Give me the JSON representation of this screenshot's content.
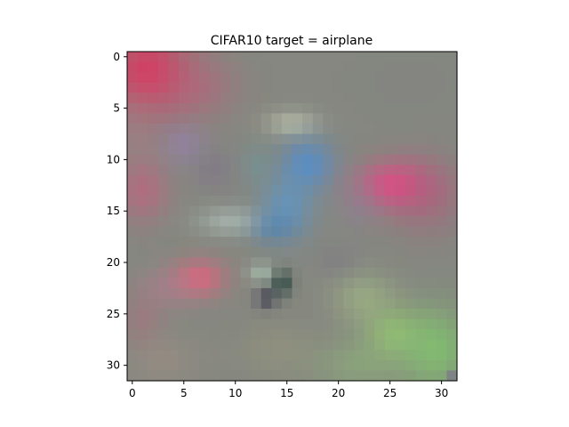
{
  "figure": {
    "title": "CIFAR10 target = airplane"
  },
  "image": {
    "grid_size": 32,
    "background_color": "#858780",
    "blobs": [
      {
        "color": "#e0305c",
        "cx": 1.5,
        "cy": 1.5,
        "rx": 4.0,
        "ry": 4.0,
        "a": 0.85
      },
      {
        "color": "#c65a7c",
        "cx": 6.0,
        "cy": 3.0,
        "rx": 4.0,
        "ry": 3.0,
        "a": 0.45
      },
      {
        "color": "#b07d8a",
        "cx": 0.5,
        "cy": 7.0,
        "rx": 2.5,
        "ry": 4.0,
        "a": 0.35
      },
      {
        "color": "#d05a80",
        "cx": 1.0,
        "cy": 13.0,
        "rx": 2.5,
        "ry": 3.0,
        "a": 0.55
      },
      {
        "color": "#9c7eb8",
        "cx": 5.0,
        "cy": 8.5,
        "rx": 2.0,
        "ry": 2.0,
        "a": 0.5
      },
      {
        "color": "#7e6f8d",
        "cx": 8.0,
        "cy": 11.0,
        "rx": 2.0,
        "ry": 2.0,
        "a": 0.45
      },
      {
        "color": "#cfd4b8",
        "cx": 15.5,
        "cy": 6.5,
        "rx": 2.5,
        "ry": 1.3,
        "a": 0.55
      },
      {
        "color": "#4e8fd6",
        "cx": 17.0,
        "cy": 10.5,
        "rx": 2.5,
        "ry": 2.5,
        "a": 0.75
      },
      {
        "color": "#5a9ad2",
        "cx": 15.0,
        "cy": 14.5,
        "rx": 2.5,
        "ry": 3.0,
        "a": 0.65
      },
      {
        "color": "#3f7bb8",
        "cx": 13.5,
        "cy": 16.5,
        "rx": 2.2,
        "ry": 1.5,
        "a": 0.55
      },
      {
        "color": "#b8ccc4",
        "cx": 9.5,
        "cy": 16.0,
        "rx": 3.0,
        "ry": 1.4,
        "a": 0.55
      },
      {
        "color": "#6a9aa0",
        "cx": 12.0,
        "cy": 10.5,
        "rx": 1.5,
        "ry": 2.0,
        "a": 0.4
      },
      {
        "color": "#e64a86",
        "cx": 25.5,
        "cy": 12.5,
        "rx": 3.5,
        "ry": 2.3,
        "a": 0.9
      },
      {
        "color": "#b5547a",
        "cx": 28.5,
        "cy": 13.5,
        "rx": 3.5,
        "ry": 3.5,
        "a": 0.5
      },
      {
        "color": "#8f7ea0",
        "cx": 22.0,
        "cy": 14.5,
        "rx": 2.0,
        "ry": 2.5,
        "a": 0.35
      },
      {
        "color": "#7f7f7f",
        "cx": 27.0,
        "cy": 2.5,
        "rx": 6.0,
        "ry": 4.0,
        "a": 0.25
      },
      {
        "color": "#e4627c",
        "cx": 6.5,
        "cy": 21.5,
        "rx": 2.5,
        "ry": 1.8,
        "a": 0.8
      },
      {
        "color": "#c07a96",
        "cx": 3.5,
        "cy": 22.5,
        "rx": 3.0,
        "ry": 2.0,
        "a": 0.4
      },
      {
        "color": "#b16c7c",
        "cx": 1.0,
        "cy": 25.5,
        "rx": 2.0,
        "ry": 2.5,
        "a": 0.45
      },
      {
        "color": "#1b3b34",
        "cx": 14.5,
        "cy": 22.0,
        "rx": 1.0,
        "ry": 1.3,
        "a": 0.75
      },
      {
        "color": "#b7d8c4",
        "cx": 12.5,
        "cy": 21.0,
        "rx": 1.3,
        "ry": 1.0,
        "a": 0.5
      },
      {
        "color": "#2c2a44",
        "cx": 13.0,
        "cy": 23.5,
        "rx": 1.0,
        "ry": 1.0,
        "a": 0.6
      },
      {
        "color": "#7c7686",
        "cx": 20.0,
        "cy": 20.0,
        "rx": 2.0,
        "ry": 1.5,
        "a": 0.45
      },
      {
        "color": "#a9c688",
        "cx": 22.5,
        "cy": 23.5,
        "rx": 3.0,
        "ry": 2.5,
        "a": 0.5
      },
      {
        "color": "#9cd66e",
        "cx": 25.5,
        "cy": 27.0,
        "rx": 3.0,
        "ry": 2.5,
        "a": 0.6
      },
      {
        "color": "#80c86c",
        "cx": 29.5,
        "cy": 28.5,
        "rx": 3.5,
        "ry": 4.0,
        "a": 0.75
      },
      {
        "color": "#8fba78",
        "cx": 22.0,
        "cy": 30.0,
        "rx": 4.5,
        "ry": 2.5,
        "a": 0.5
      },
      {
        "color": "#a4a27a",
        "cx": 14.0,
        "cy": 28.5,
        "rx": 4.0,
        "ry": 2.5,
        "a": 0.3
      },
      {
        "color": "#b29686",
        "cx": 3.0,
        "cy": 29.5,
        "rx": 3.5,
        "ry": 2.5,
        "a": 0.3
      },
      {
        "color": "#7d7f84",
        "cx": 31.0,
        "cy": 31.0,
        "rx": 0.6,
        "ry": 0.6,
        "a": 0.9
      }
    ]
  },
  "axes": {
    "x_ticks": [
      {
        "value": 0,
        "label": "0"
      },
      {
        "value": 5,
        "label": "5"
      },
      {
        "value": 10,
        "label": "10"
      },
      {
        "value": 15,
        "label": "15"
      },
      {
        "value": 20,
        "label": "20"
      },
      {
        "value": 25,
        "label": "25"
      },
      {
        "value": 30,
        "label": "30"
      }
    ],
    "y_ticks": [
      {
        "value": 0,
        "label": "0"
      },
      {
        "value": 5,
        "label": "5"
      },
      {
        "value": 10,
        "label": "10"
      },
      {
        "value": 15,
        "label": "15"
      },
      {
        "value": 20,
        "label": "20"
      },
      {
        "value": 25,
        "label": "25"
      },
      {
        "value": 30,
        "label": "30"
      }
    ]
  }
}
